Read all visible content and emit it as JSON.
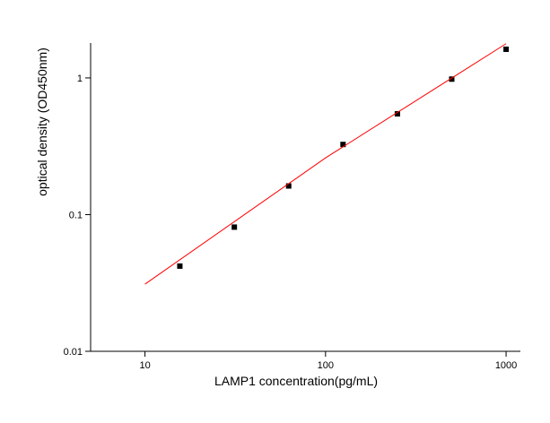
{
  "chart_data": {
    "type": "scatter",
    "xlabel": "LAMP1 concentration(pg/mL)",
    "ylabel": "optical density (OD450nm)",
    "xscale": "log",
    "yscale": "log",
    "xlim": [
      5,
      1200
    ],
    "ylim": [
      0.01,
      1.8
    ],
    "xticks": [
      10,
      100,
      1000
    ],
    "yticks": [
      0.01,
      0.1,
      1
    ],
    "series": [
      {
        "type": "scatter",
        "color": "#000000",
        "x": [
          15.6,
          31.25,
          62.5,
          125,
          250,
          500,
          1000
        ],
        "values": [
          0.042,
          0.081,
          0.162,
          0.326,
          0.546,
          0.98,
          1.62
        ]
      },
      {
        "type": "line",
        "color": "#ff0000",
        "x": [
          10,
          100,
          1000
        ],
        "values": [
          0.031,
          0.26,
          1.78
        ]
      }
    ]
  }
}
